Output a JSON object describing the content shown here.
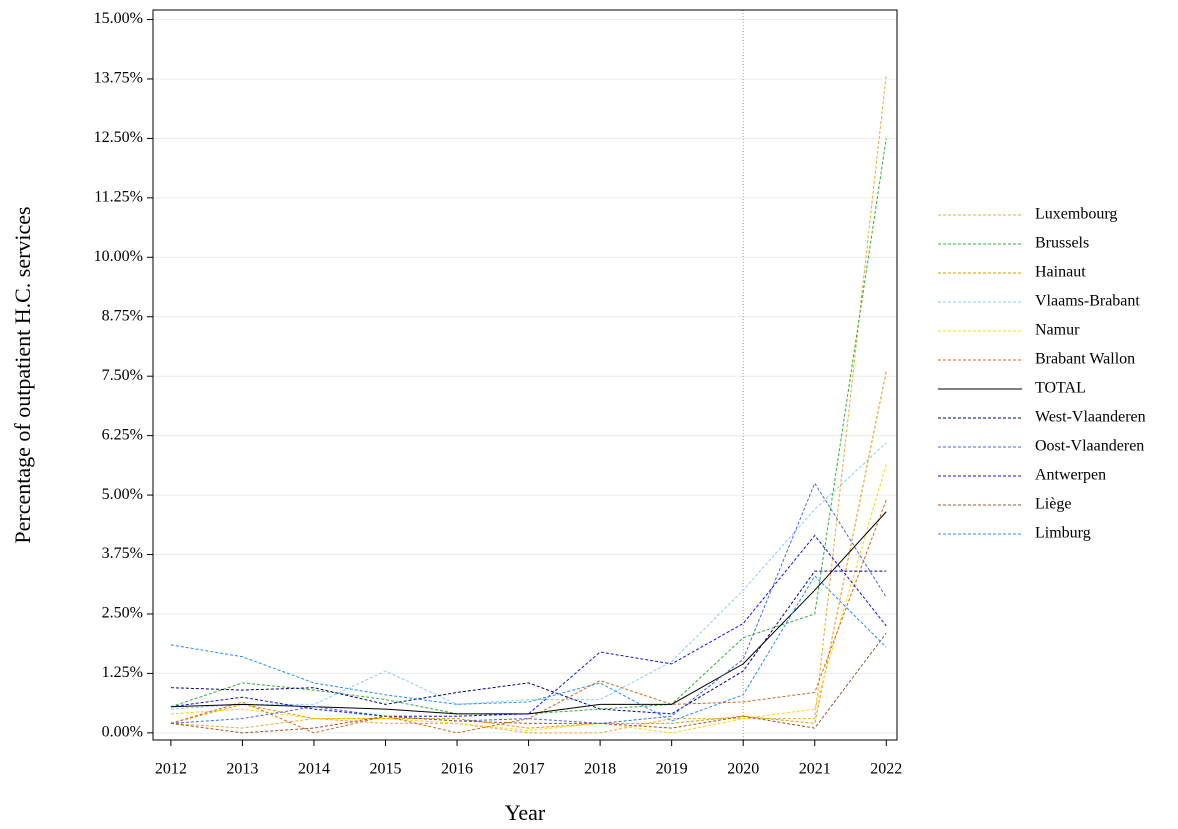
{
  "chart_data": {
    "type": "line",
    "x_label": "Year",
    "y_label": "Percentage of outpatient H.C. services",
    "x": [
      2012,
      2013,
      2014,
      2015,
      2016,
      2017,
      2018,
      2019,
      2020,
      2021,
      2022
    ],
    "xlim": [
      2011.75,
      2022.15
    ],
    "xticks": [
      2012,
      2013,
      2014,
      2015,
      2016,
      2017,
      2018,
      2019,
      2020,
      2021,
      2022
    ],
    "ylim": [
      -0.15,
      15.2
    ],
    "yticks": [
      {
        "value": 0,
        "label": "0.00%"
      },
      {
        "value": 1.25,
        "label": "1.25%"
      },
      {
        "value": 2.5,
        "label": "2.50%"
      },
      {
        "value": 3.75,
        "label": "3.75%"
      },
      {
        "value": 5,
        "label": "5.00%"
      },
      {
        "value": 6.25,
        "label": "6.25%"
      },
      {
        "value": 7.5,
        "label": "7.50%"
      },
      {
        "value": 8.75,
        "label": "8.75%"
      },
      {
        "value": 10,
        "label": "10.00%"
      },
      {
        "value": 11.25,
        "label": "11.25%"
      },
      {
        "value": 12.5,
        "label": "12.50%"
      },
      {
        "value": 13.75,
        "label": "13.75%"
      },
      {
        "value": 15,
        "label": "15.00%"
      }
    ],
    "grid": true,
    "legend": "right",
    "vline": {
      "x": 2020,
      "color": "#e08080"
    },
    "series": [
      {
        "name": "Luxembourg",
        "color": "#f0a830",
        "dashed": true,
        "values": [
          0.2,
          0.1,
          0.3,
          0.2,
          0.2,
          0.0,
          0.0,
          0.3,
          0.3,
          0.3,
          13.85
        ]
      },
      {
        "name": "Brussels",
        "color": "#30b030",
        "dashed": true,
        "values": [
          0.55,
          1.05,
          0.9,
          0.7,
          0.4,
          0.4,
          0.5,
          0.6,
          2.0,
          2.5,
          12.5
        ]
      },
      {
        "name": "Hainaut",
        "color": "#e69500",
        "dashed": true,
        "values": [
          0.2,
          0.6,
          0.3,
          0.3,
          0.3,
          0.1,
          0.2,
          0.2,
          0.35,
          0.2,
          7.6
        ]
      },
      {
        "name": "Vlaams-Brabant",
        "color": "#87cefa",
        "dashed": true,
        "values": [
          0.5,
          0.6,
          0.6,
          1.3,
          0.6,
          0.7,
          0.7,
          1.5,
          3.0,
          4.7,
          6.1
        ]
      },
      {
        "name": "Namur",
        "color": "#ffd700",
        "dashed": true,
        "values": [
          0.4,
          0.5,
          0.3,
          0.3,
          0.2,
          0.05,
          0.2,
          0.0,
          0.3,
          0.5,
          5.65
        ]
      },
      {
        "name": "Brabant Wallon",
        "color": "#d2691e",
        "dashed": true,
        "values": [
          0.2,
          0.65,
          0.0,
          0.35,
          0.0,
          0.3,
          1.1,
          0.6,
          0.65,
          0.85,
          4.9
        ]
      },
      {
        "name": "TOTAL",
        "color": "#000000",
        "dashed": false,
        "values": [
          0.55,
          0.6,
          0.55,
          0.5,
          0.4,
          0.4,
          0.6,
          0.6,
          1.45,
          3.0,
          4.65
        ]
      },
      {
        "name": "West-Vlaanderen",
        "color": "#000080",
        "dashed": true,
        "values": [
          0.95,
          0.9,
          0.95,
          0.6,
          0.85,
          1.05,
          0.5,
          0.4,
          1.3,
          3.4,
          3.4
        ]
      },
      {
        "name": "Oost-Vlaanderen",
        "color": "#4169e1",
        "dashed": true,
        "values": [
          0.2,
          0.3,
          0.55,
          0.35,
          0.25,
          0.3,
          0.2,
          0.35,
          1.55,
          5.25,
          2.85
        ]
      },
      {
        "name": "Antwerpen",
        "color": "#1010e0",
        "dashed": true,
        "values": [
          0.55,
          0.75,
          0.5,
          0.35,
          0.35,
          0.4,
          1.7,
          1.45,
          2.3,
          4.15,
          2.25
        ]
      },
      {
        "name": "Liège",
        "color": "#a0522d",
        "dashed": true,
        "values": [
          0.2,
          0.0,
          0.1,
          0.35,
          0.25,
          0.2,
          0.2,
          0.1,
          0.35,
          0.1,
          2.1
        ]
      },
      {
        "name": "Limburg",
        "color": "#1e90ff",
        "dashed": true,
        "values": [
          1.85,
          1.6,
          1.05,
          0.8,
          0.6,
          0.65,
          1.05,
          0.25,
          0.8,
          3.3,
          1.8
        ]
      }
    ]
  }
}
